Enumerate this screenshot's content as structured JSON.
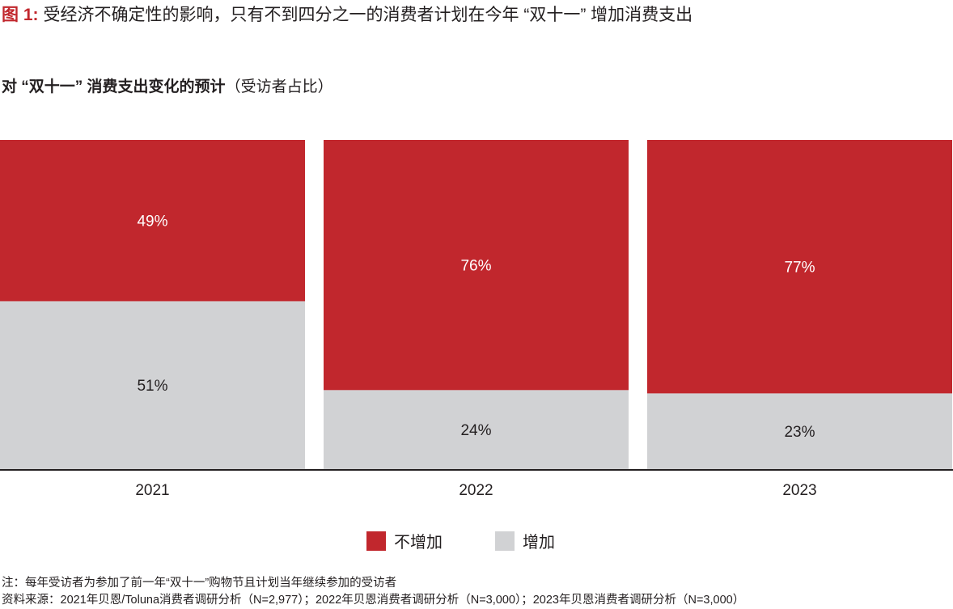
{
  "title": {
    "figure_label": "图 1:",
    "text": "受经济不确定性的影响，只有不到四分之一的消费者计划在今年 “双十一” 增加消费支出"
  },
  "subtitle": {
    "bold": "对 “双十一” 消费支出变化的预计",
    "normal": "（受访者占比）"
  },
  "chart_data": {
    "type": "bar",
    "stacked": true,
    "normalized": true,
    "categories": [
      "2021",
      "2022",
      "2023"
    ],
    "series": [
      {
        "name": "增加",
        "values": [
          51,
          24,
          23
        ],
        "labels": [
          "51%",
          "24%",
          "23%"
        ],
        "color": "#d1d2d4"
      },
      {
        "name": "不增加",
        "values": [
          49,
          76,
          77
        ],
        "labels": [
          "49%",
          "76%",
          "77%"
        ],
        "color": "#c1272d"
      }
    ],
    "ylim": [
      0,
      100
    ],
    "xlabel": "",
    "ylabel": "",
    "legend_position": "bottom-center",
    "grid": false
  },
  "legend": [
    {
      "label": "不增加",
      "color": "#c1272d"
    },
    {
      "label": "增加",
      "color": "#d1d2d4"
    }
  ],
  "notes": {
    "note": "注：每年受访者为参加了前一年“双十一”购物节且计划当年继续参加的受访者",
    "source": "资料来源：2021年贝恩/Toluna消费者调研分析（N=2,977）；2022年贝恩消费者调研分析（N=3,000）；2023年贝恩消费者调研分析（N=3,000）"
  }
}
